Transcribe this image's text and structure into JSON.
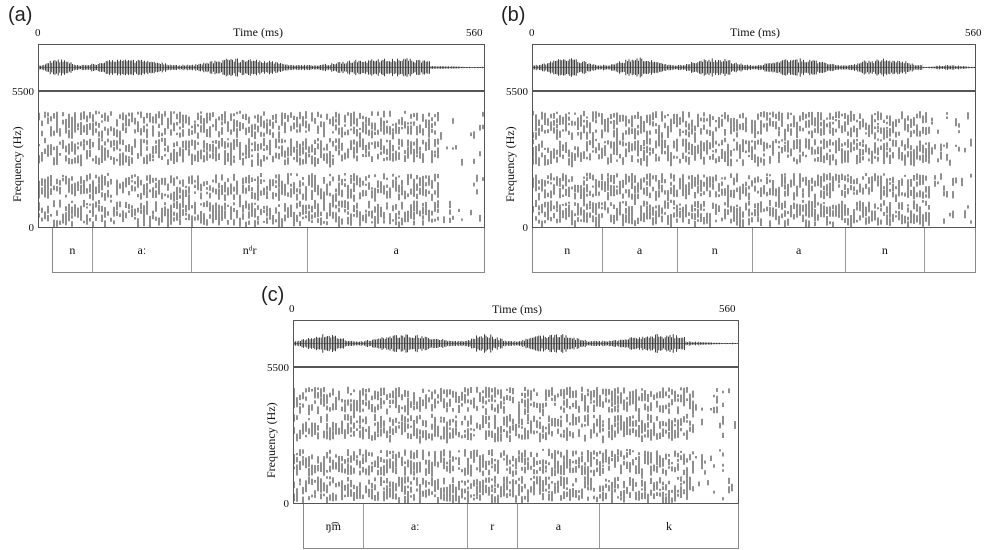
{
  "panels": [
    {
      "label": "(a)",
      "time_title": "Time (ms)",
      "t_start": "0",
      "t_end": "560",
      "f_max": "5500",
      "f_min": "0",
      "ylabel": "Frequency (Hz)",
      "segments": [
        {
          "text": "n",
          "dur": 0.09
        },
        {
          "text": "aː",
          "dur": 0.23
        },
        {
          "text": "nᵈr",
          "dur": 0.27
        },
        {
          "text": "a",
          "dur": 0.41
        }
      ]
    },
    {
      "label": "(b)",
      "time_title": "Time (ms)",
      "t_start": "0",
      "t_end": "560",
      "f_max": "5500",
      "f_min": "0",
      "ylabel": "Frequency (Hz)",
      "segments": [
        {
          "text": "n",
          "dur": 0.155
        },
        {
          "text": "a",
          "dur": 0.17
        },
        {
          "text": "n",
          "dur": 0.17
        },
        {
          "text": "a",
          "dur": 0.21
        },
        {
          "text": "n",
          "dur": 0.18
        },
        {
          "text": "",
          "dur": 0.115
        }
      ]
    },
    {
      "label": "(c)",
      "time_title": "Time (ms)",
      "t_start": "0",
      "t_end": "560",
      "f_max": "5500",
      "f_min": "0",
      "ylabel": "Frequency (Hz)",
      "segments": [
        {
          "text": "ŋ͡m",
          "dur": 0.135
        },
        {
          "text": "aː",
          "dur": 0.24
        },
        {
          "text": "r",
          "dur": 0.115
        },
        {
          "text": "a",
          "dur": 0.19
        },
        {
          "text": "k",
          "dur": 0.32
        }
      ]
    }
  ]
}
